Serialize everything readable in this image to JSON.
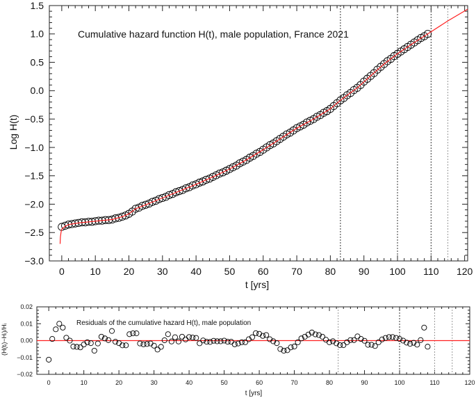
{
  "chart_data": [
    {
      "type": "scatter",
      "annotation": "Cumulative hazard function H(t), male population, France 2021",
      "xlabel": "t [yrs]",
      "ylabel": "Log H(t)",
      "xlim": [
        -3.7,
        120.9
      ],
      "ylim": [
        -3.0,
        1.5
      ],
      "xticks": [
        0,
        10,
        20,
        30,
        40,
        50,
        60,
        70,
        80,
        90,
        100,
        110,
        120
      ],
      "yticks": [
        -3.0,
        -2.5,
        -2.0,
        -1.5,
        -1.0,
        -0.5,
        0.0,
        0.5,
        1.0,
        1.5
      ],
      "ytick_labels": [
        "−3.0",
        "−2.5",
        "−2.0",
        "−1.5",
        "−1.0",
        "−0.5",
        "0.0",
        "0.5",
        "1.0",
        "1.5"
      ],
      "grid": false,
      "vertical_dashed_lines": [
        83,
        100,
        110,
        115
      ],
      "series": [
        {
          "kind": "points",
          "marker": "open-circle",
          "color": "#000000",
          "x_start": 0,
          "y": [
            -2.4,
            -2.38,
            -2.36,
            -2.35,
            -2.34,
            -2.33,
            -2.32,
            -2.32,
            -2.31,
            -2.31,
            -2.3,
            -2.29,
            -2.29,
            -2.28,
            -2.28,
            -2.27,
            -2.25,
            -2.24,
            -2.22,
            -2.2,
            -2.17,
            -2.13,
            -2.08,
            -2.06,
            -2.03,
            -2.01,
            -1.99,
            -1.96,
            -1.94,
            -1.91,
            -1.89,
            -1.87,
            -1.84,
            -1.82,
            -1.79,
            -1.77,
            -1.75,
            -1.72,
            -1.7,
            -1.67,
            -1.65,
            -1.62,
            -1.6,
            -1.57,
            -1.55,
            -1.52,
            -1.49,
            -1.46,
            -1.44,
            -1.41,
            -1.38,
            -1.35,
            -1.32,
            -1.28,
            -1.25,
            -1.22,
            -1.18,
            -1.15,
            -1.11,
            -1.08,
            -1.04,
            -1.0,
            -0.96,
            -0.93,
            -0.89,
            -0.85,
            -0.81,
            -0.77,
            -0.74,
            -0.7,
            -0.66,
            -0.63,
            -0.6,
            -0.56,
            -0.53,
            -0.5,
            -0.46,
            -0.43,
            -0.39,
            -0.36,
            -0.32,
            -0.27,
            -0.22,
            -0.17,
            -0.13,
            -0.08,
            -0.04,
            0.01,
            0.05,
            0.1,
            0.16,
            0.21,
            0.26,
            0.31,
            0.37,
            0.42,
            0.47,
            0.52,
            0.56,
            0.61,
            0.65,
            0.69,
            0.73,
            0.77,
            0.81,
            0.85,
            0.89,
            0.93,
            0.96,
            1.0
          ]
        },
        {
          "kind": "fit-line",
          "color": "#ff2020",
          "x": [
            -0.5,
            -0.4,
            -0.2,
            0,
            1,
            2,
            5,
            10,
            15,
            18,
            20,
            22,
            25,
            30,
            35,
            40,
            45,
            50,
            55,
            60,
            65,
            70,
            75,
            80,
            83,
            85,
            88,
            92,
            96,
            100,
            105,
            109,
            115,
            121
          ],
          "y": [
            -2.7,
            -2.58,
            -2.49,
            -2.44,
            -2.39,
            -2.36,
            -2.33,
            -2.3,
            -2.27,
            -2.22,
            -2.17,
            -2.08,
            -2.01,
            -1.89,
            -1.77,
            -1.65,
            -1.52,
            -1.38,
            -1.22,
            -1.04,
            -0.85,
            -0.66,
            -0.5,
            -0.32,
            -0.17,
            -0.08,
            0.05,
            0.26,
            0.47,
            0.65,
            0.85,
            1.0,
            1.23,
            1.44
          ]
        }
      ]
    },
    {
      "type": "scatter",
      "annotation": "Residuals of the cumulative hazard H(t), male population",
      "xlabel": "t [yrs]",
      "ylabel": "(H(tᵢ)−Hᵢ)/Hᵢ",
      "xlim": [
        -3.4,
        120
      ],
      "ylim": [
        -0.02,
        0.02
      ],
      "xticks": [
        0,
        10,
        20,
        30,
        40,
        50,
        60,
        70,
        80,
        90,
        100,
        110,
        120
      ],
      "yticks": [
        -0.02,
        -0.01,
        0.0,
        0.01,
        0.02
      ],
      "ytick_labels": [
        "−0.02",
        "−0.01",
        "0.00",
        "0.01",
        "0.02"
      ],
      "grid": false,
      "vertical_dashed_lines": [
        82.5,
        100,
        110,
        115
      ],
      "reference_line": {
        "y": 0.0,
        "color": "#ff2020"
      },
      "series": [
        {
          "kind": "points",
          "marker": "open-circle",
          "color": "#000000",
          "x_start": 0,
          "y": [
            -0.0113,
            0.001,
            0.0067,
            0.01,
            0.0077,
            0.0017,
            0.0,
            -0.0035,
            -0.0037,
            -0.004,
            -0.0023,
            -0.001,
            -0.0015,
            -0.006,
            -0.0017,
            0.0023,
            0.0013,
            0.0003,
            0.0057,
            -0.0007,
            -0.0015,
            -0.0028,
            -0.0028,
            0.0038,
            0.0043,
            0.0043,
            -0.0017,
            -0.0022,
            -0.002,
            -0.0017,
            -0.003,
            -0.0053,
            -0.0037,
            0.0002,
            0.0038,
            -0.0005,
            0.002,
            -0.0005,
            0.0023,
            0.0007,
            0.0021,
            0.0018,
            0.0016,
            -0.0016,
            0.0001,
            -0.0007,
            -0.0008,
            -0.0001,
            -0.0004,
            -0.0004,
            0.0,
            -0.0007,
            -0.0007,
            -0.0022,
            -0.0017,
            -0.001,
            -0.001,
            0.0008,
            0.002,
            0.0044,
            0.004,
            0.0028,
            0.0033,
            0.0008,
            -0.0004,
            -0.0015,
            -0.005,
            -0.006,
            -0.0057,
            -0.004,
            -0.0035,
            -0.001,
            0.0013,
            0.0023,
            0.0036,
            0.0048,
            0.0037,
            0.0033,
            0.0023,
            0.0005,
            -0.001,
            -0.0004,
            -0.0016,
            -0.0027,
            -0.0027,
            -0.001,
            0.0003,
            0.0003,
            0.0025,
            0.001,
            -0.0001,
            -0.0025,
            -0.0025,
            -0.0032,
            -0.001,
            0.0007,
            0.0016,
            0.0021,
            0.0021,
            0.0016,
            0.001,
            0.0,
            -0.0012,
            -0.0019,
            -0.0013,
            -0.0024,
            0.0003,
            0.0077,
            -0.0036
          ]
        }
      ]
    }
  ]
}
